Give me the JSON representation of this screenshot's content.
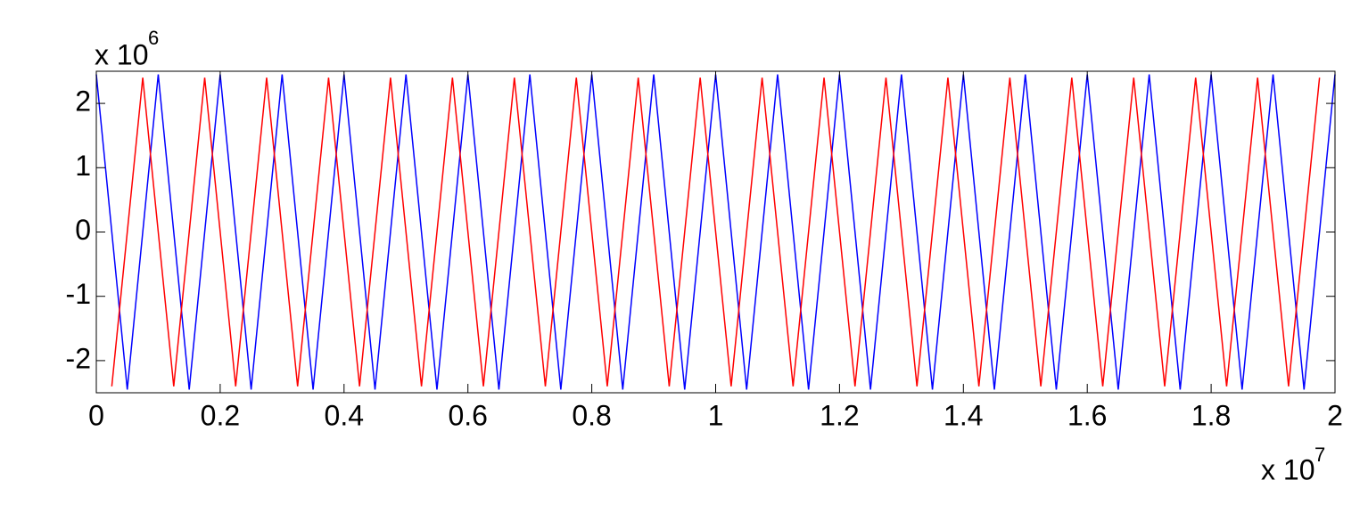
{
  "chart_data": {
    "type": "line",
    "y_exponent_base": "x 10",
    "y_exponent": "6",
    "x_exponent_base": "x 10",
    "x_exponent": "7",
    "xlim": [
      0,
      2
    ],
    "xticks": [
      0,
      0.2,
      0.4,
      0.6,
      0.8,
      1,
      1.2,
      1.4,
      1.6,
      1.8,
      2
    ],
    "ylim": [
      -2.5,
      2.5
    ],
    "yticks": [
      -2,
      -1,
      0,
      1,
      2
    ],
    "series": [
      {
        "color": "#0000ff",
        "x": [
          0,
          0.05,
          0.1,
          0.15,
          0.2,
          0.25,
          0.3,
          0.35,
          0.4,
          0.45,
          0.5,
          0.55,
          0.6,
          0.65,
          0.7,
          0.75,
          0.8,
          0.85,
          0.9,
          0.95,
          1,
          1.05,
          1.1,
          1.15,
          1.2,
          1.25,
          1.3,
          1.35,
          1.4,
          1.45,
          1.5,
          1.55,
          1.6,
          1.65,
          1.7,
          1.75,
          1.8,
          1.85,
          1.9,
          1.95,
          2
        ],
        "values": [
          2.45,
          -2.45,
          2.45,
          -2.45,
          2.45,
          -2.45,
          2.45,
          -2.45,
          2.45,
          -2.45,
          2.45,
          -2.45,
          2.45,
          -2.45,
          2.45,
          -2.45,
          2.45,
          -2.45,
          2.45,
          -2.45,
          2.45,
          -2.45,
          2.45,
          -2.45,
          2.45,
          -2.45,
          2.45,
          -2.45,
          2.45,
          -2.45,
          2.45,
          -2.45,
          2.45,
          -2.45,
          2.45,
          -2.45,
          2.45,
          -2.45,
          2.45,
          -2.45,
          2.45
        ]
      },
      {
        "color": "#ff0000",
        "x": [
          0.025,
          0.075,
          0.125,
          0.175,
          0.225,
          0.275,
          0.325,
          0.375,
          0.425,
          0.475,
          0.525,
          0.575,
          0.625,
          0.675,
          0.725,
          0.775,
          0.825,
          0.875,
          0.925,
          0.975,
          1.025,
          1.075,
          1.125,
          1.175,
          1.225,
          1.275,
          1.325,
          1.375,
          1.425,
          1.475,
          1.525,
          1.575,
          1.625,
          1.675,
          1.725,
          1.775,
          1.825,
          1.875,
          1.925,
          1.975
        ],
        "values": [
          -2.4,
          2.4,
          -2.4,
          2.4,
          -2.4,
          2.4,
          -2.4,
          2.4,
          -2.4,
          2.4,
          -2.4,
          2.4,
          -2.4,
          2.4,
          -2.4,
          2.4,
          -2.4,
          2.4,
          -2.4,
          2.4,
          -2.4,
          2.4,
          -2.4,
          2.4,
          -2.4,
          2.4,
          -2.4,
          2.4,
          -2.4,
          2.4,
          -2.4,
          2.4,
          -2.4,
          2.4,
          -2.4,
          2.4,
          -2.4,
          2.4,
          -2.4,
          2.4
        ]
      }
    ]
  }
}
